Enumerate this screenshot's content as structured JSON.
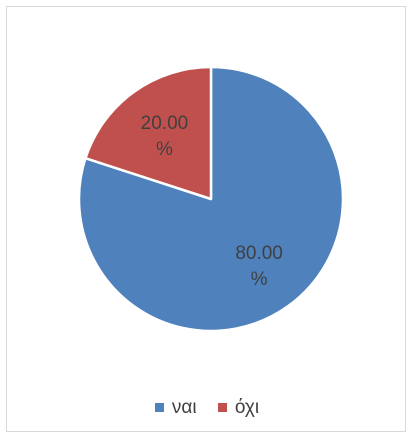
{
  "chart_data": {
    "type": "pie",
    "title": "",
    "categories": [
      "ναι",
      "όχι"
    ],
    "values": [
      80.0,
      20.0
    ],
    "data_labels": [
      [
        "80.00",
        "%"
      ],
      [
        "20.00",
        "%"
      ]
    ],
    "colors": [
      "#4f81bd",
      "#c0504d"
    ],
    "legend_position": "bottom"
  }
}
